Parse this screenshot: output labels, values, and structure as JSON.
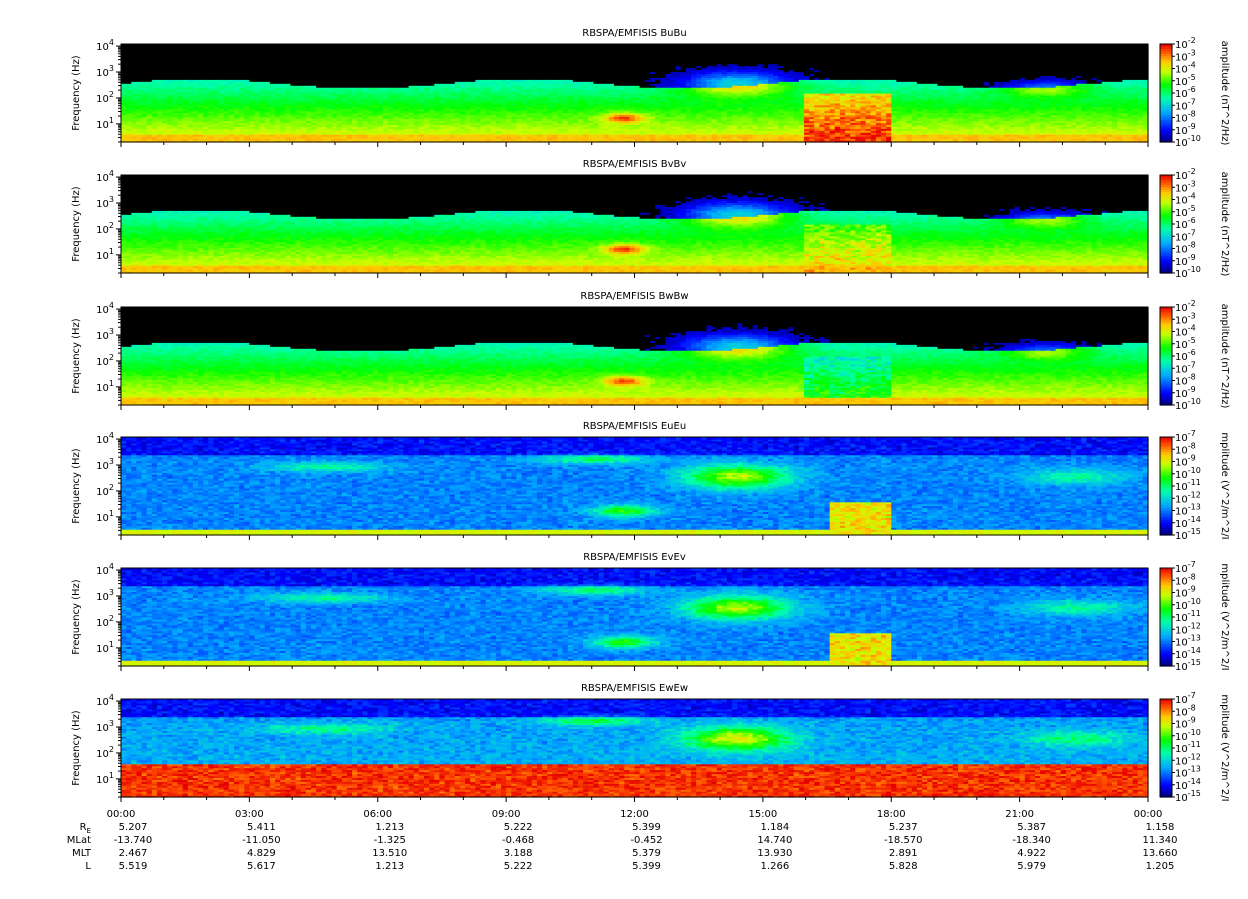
{
  "figure": {
    "ephemeris_labels": [
      "R_E",
      "MLat",
      "MLT",
      "L"
    ],
    "time_ticks": [
      "00:00",
      "03:00",
      "06:00",
      "09:00",
      "12:00",
      "15:00",
      "18:00",
      "21:00",
      "00:00"
    ],
    "ephemeris_values": {
      "R_E": [
        "5.207",
        "5.411",
        "1.213",
        "5.222",
        "5.399",
        "1.184",
        "5.237",
        "5.387",
        "1.158"
      ],
      "MLat": [
        "-13.740",
        "-11.050",
        "-1.325",
        "-0.468",
        "-0.452",
        "14.740",
        "-18.570",
        "-18.340",
        "11.340"
      ],
      "MLT": [
        "2.467",
        "4.829",
        "13.510",
        "3.188",
        "5.379",
        "13.930",
        "2.891",
        "4.922",
        "13.660"
      ],
      "L": [
        "5.519",
        "5.617",
        "1.213",
        "5.222",
        "5.399",
        "1.266",
        "5.828",
        "5.979",
        "1.205"
      ]
    }
  },
  "chart_data": [
    {
      "type": "heatmap",
      "title": "RBSPA/EMFISIS  BuBu",
      "ylabel": "Frequency (Hz)",
      "y_scale": "log",
      "ylim": [
        2,
        12000
      ],
      "y_ticks": [
        "10^1",
        "10^2",
        "10^3",
        "10^4"
      ],
      "x_ticks": [
        "00:00",
        "03:00",
        "06:00",
        "09:00",
        "12:00",
        "15:00",
        "18:00",
        "21:00",
        "00:00"
      ],
      "colorbar": {
        "label": "amplitude (nT^2/Hz)",
        "ticks": [
          "10^-2",
          "10^-3",
          "10^-4",
          "10^-5",
          "10^-6",
          "10^-7",
          "10^-8",
          "10^-9",
          "10^-10"
        ]
      }
    },
    {
      "type": "heatmap",
      "title": "RBSPA/EMFISIS  BvBv",
      "ylabel": "Frequency (Hz)",
      "y_scale": "log",
      "ylim": [
        2,
        12000
      ],
      "y_ticks": [
        "10^1",
        "10^2",
        "10^3",
        "10^4"
      ],
      "x_ticks": [
        "00:00",
        "03:00",
        "06:00",
        "09:00",
        "12:00",
        "15:00",
        "18:00",
        "21:00",
        "00:00"
      ],
      "colorbar": {
        "label": "amplitude (nT^2/Hz)",
        "ticks": [
          "10^-2",
          "10^-3",
          "10^-4",
          "10^-5",
          "10^-6",
          "10^-7",
          "10^-8",
          "10^-9",
          "10^-10"
        ]
      }
    },
    {
      "type": "heatmap",
      "title": "RBSPA/EMFISIS  BwBw",
      "ylabel": "Frequency (Hz)",
      "y_scale": "log",
      "ylim": [
        2,
        12000
      ],
      "y_ticks": [
        "10^1",
        "10^2",
        "10^3",
        "10^4"
      ],
      "x_ticks": [
        "00:00",
        "03:00",
        "06:00",
        "09:00",
        "12:00",
        "15:00",
        "18:00",
        "21:00",
        "00:00"
      ],
      "colorbar": {
        "label": "amplitude (nT^2/Hz)",
        "ticks": [
          "10^-2",
          "10^-3",
          "10^-4",
          "10^-5",
          "10^-6",
          "10^-7",
          "10^-8",
          "10^-9",
          "10^-10"
        ]
      }
    },
    {
      "type": "heatmap",
      "title": "RBSPA/EMFISIS  EuEu",
      "ylabel": "Frequency (Hz)",
      "y_scale": "log",
      "ylim": [
        2,
        12000
      ],
      "y_ticks": [
        "10^1",
        "10^2",
        "10^3",
        "10^4"
      ],
      "x_ticks": [
        "00:00",
        "03:00",
        "06:00",
        "09:00",
        "12:00",
        "15:00",
        "18:00",
        "21:00",
        "00:00"
      ],
      "colorbar": {
        "label": "mplitude (V^2/m^2/I",
        "ticks": [
          "10^-7",
          "10^-8",
          "10^-9",
          "10^-10",
          "10^-11",
          "10^-12",
          "10^-13",
          "10^-14",
          "10^-15"
        ]
      }
    },
    {
      "type": "heatmap",
      "title": "RBSPA/EMFISIS  EvEv",
      "ylabel": "Frequency (Hz)",
      "y_scale": "log",
      "ylim": [
        2,
        12000
      ],
      "y_ticks": [
        "10^1",
        "10^2",
        "10^3",
        "10^4"
      ],
      "x_ticks": [
        "00:00",
        "03:00",
        "06:00",
        "09:00",
        "12:00",
        "15:00",
        "18:00",
        "21:00",
        "00:00"
      ],
      "colorbar": {
        "label": "mplitude (V^2/m^2/I",
        "ticks": [
          "10^-7",
          "10^-8",
          "10^-9",
          "10^-10",
          "10^-11",
          "10^-12",
          "10^-13",
          "10^-14",
          "10^-15"
        ]
      }
    },
    {
      "type": "heatmap",
      "title": "RBSPA/EMFISIS  EwEw",
      "ylabel": "Frequency (Hz)",
      "y_scale": "log",
      "ylim": [
        2,
        12000
      ],
      "y_ticks": [
        "10^1",
        "10^2",
        "10^3",
        "10^4"
      ],
      "x_ticks": [
        "00:00",
        "03:00",
        "06:00",
        "09:00",
        "12:00",
        "15:00",
        "18:00",
        "21:00",
        "00:00"
      ],
      "colorbar": {
        "label": "mplitude (V^2/m^2/I",
        "ticks": [
          "10^-7",
          "10^-8",
          "10^-9",
          "10^-10",
          "10^-11",
          "10^-12",
          "10^-13",
          "10^-14",
          "10^-15"
        ]
      }
    }
  ]
}
